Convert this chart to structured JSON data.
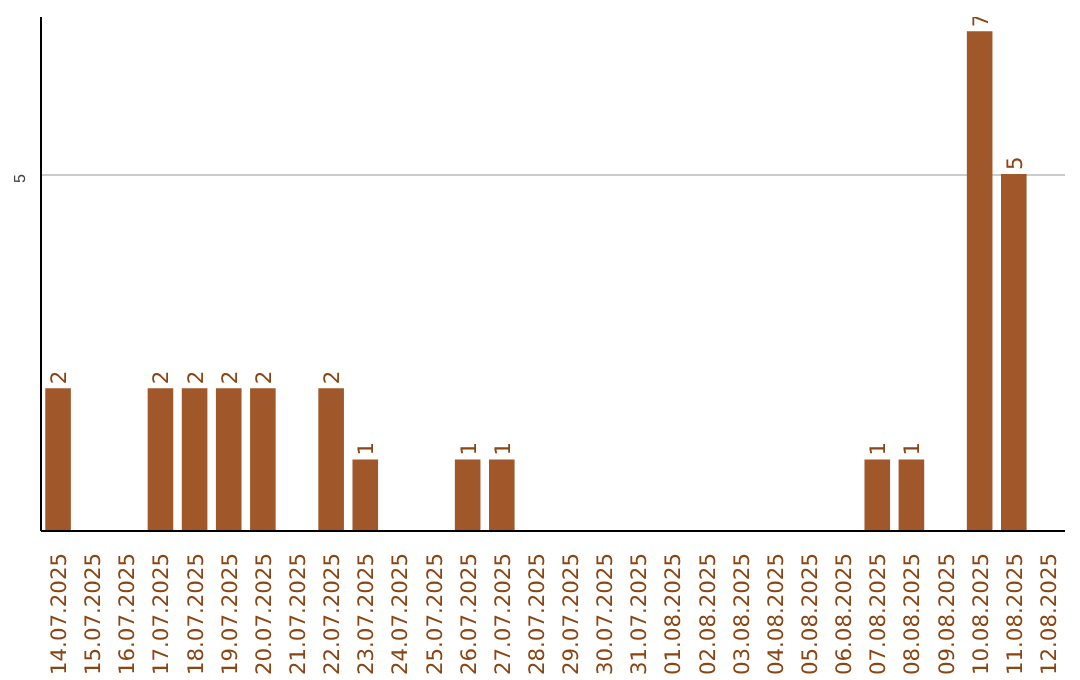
{
  "chart_data": {
    "type": "bar",
    "categories": [
      "14.07.2025",
      "15.07.2025",
      "16.07.2025",
      "17.07.2025",
      "18.07.2025",
      "19.07.2025",
      "20.07.2025",
      "21.07.2025",
      "22.07.2025",
      "23.07.2025",
      "24.07.2025",
      "25.07.2025",
      "26.07.2025",
      "27.07.2025",
      "28.07.2025",
      "29.07.2025",
      "30.07.2025",
      "31.07.2025",
      "01.08.2025",
      "02.08.2025",
      "03.08.2025",
      "04.08.2025",
      "05.08.2025",
      "06.08.2025",
      "07.08.2025",
      "08.08.2025",
      "09.08.2025",
      "10.08.2025",
      "11.08.2025",
      "12.08.2025"
    ],
    "values": [
      2,
      0,
      0,
      2,
      2,
      2,
      2,
      0,
      2,
      1,
      0,
      0,
      1,
      1,
      0,
      0,
      0,
      0,
      0,
      0,
      0,
      0,
      0,
      0,
      1,
      1,
      0,
      7,
      5,
      0
    ],
    "value_labels": [
      "2",
      null,
      null,
      "2",
      "2",
      "2",
      "2",
      null,
      "2",
      "1",
      null,
      null,
      "1",
      "1",
      null,
      null,
      null,
      null,
      null,
      null,
      null,
      null,
      null,
      null,
      "1",
      "1",
      null,
      "7",
      "5",
      null
    ],
    "color": "#a0582a",
    "ylim": [
      0,
      7.2
    ],
    "yticks": [
      5
    ],
    "grid": "y"
  }
}
